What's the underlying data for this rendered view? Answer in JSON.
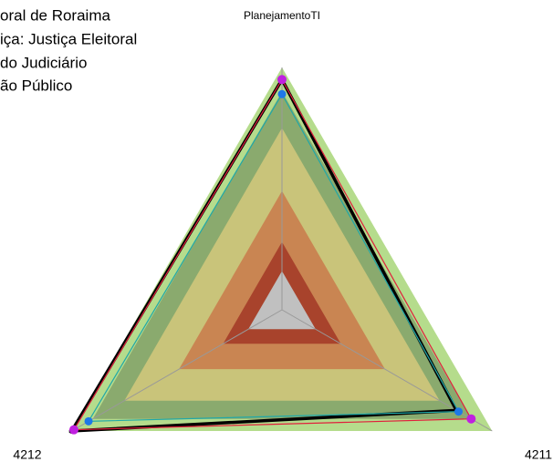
{
  "chart_data": {
    "type": "radar",
    "legend_lines": [
      "oral de Roraima",
      "iça: Justiça Eleitoral",
      " do Judiciário",
      "ão Público"
    ],
    "categories": [
      "PlanejamentoTI",
      "4211",
      "4212"
    ],
    "rlim": [
      0,
      100
    ],
    "bands": [
      {
        "level": 100,
        "color": "#b5dc8c"
      },
      {
        "level": 90,
        "color": "#8aaa6e"
      },
      {
        "level": 75,
        "color": "#c9c47a"
      },
      {
        "level": 49,
        "color": "#c98552"
      },
      {
        "level": 28,
        "color": "#a8432c"
      },
      {
        "level": 16,
        "color": "#c0c0c0"
      }
    ],
    "series": [
      {
        "color": "#000000",
        "values": [
          95,
          83,
          100
        ]
      },
      {
        "color": "#e0203c",
        "marker": "#c020e0",
        "values": [
          95,
          90,
          99
        ]
      },
      {
        "color": "#20a8a8",
        "marker": "#1e78e8",
        "values": [
          89,
          84,
          92
        ]
      }
    ]
  }
}
